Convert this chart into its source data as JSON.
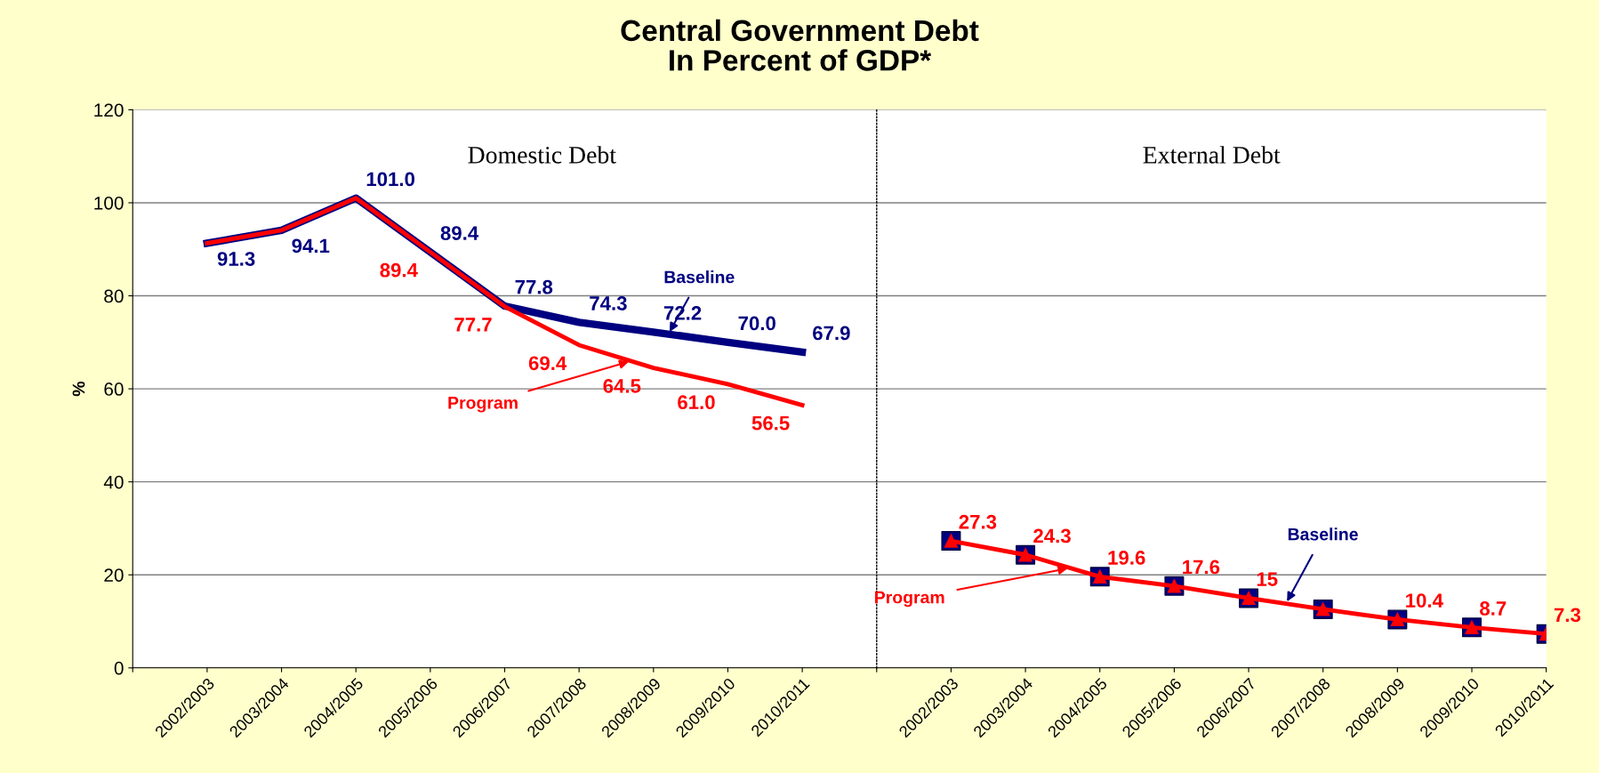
{
  "chart_data": [
    {
      "type": "line",
      "title": "Central Government Debt\nIn Percent of GDP*",
      "ylabel": "%",
      "categories": [
        null,
        "2002/2003",
        "2003/2004",
        "2004/2005",
        "2005/2006",
        "2006/2007",
        "2007/2008",
        "2008/2009",
        "2009/2010",
        "2010/2011"
      ],
      "series": [
        {
          "name": "Baseline",
          "color": "#000080",
          "values": [
            null,
            91.3,
            94.1,
            101.0,
            89.4,
            77.8,
            74.3,
            72.2,
            70.0,
            67.9
          ],
          "value_labels": [
            null,
            "91.3",
            "94.1",
            "101.0",
            "89.4",
            "77.8",
            "74.3",
            "72.2",
            "70.0",
            "67.9"
          ]
        },
        {
          "name": "Program",
          "color": "#ff0000",
          "values": [
            null,
            91.3,
            94.1,
            101.0,
            89.4,
            77.7,
            69.4,
            64.5,
            61.0,
            56.5
          ],
          "value_labels": [
            null,
            null,
            null,
            null,
            "89.4",
            "77.7",
            "69.4",
            "64.5",
            "61.0",
            "56.5"
          ]
        }
      ],
      "ylim": [
        0,
        120
      ],
      "yticks": [
        0,
        20,
        40,
        60,
        80,
        100,
        120
      ],
      "grid": "y",
      "annotations": [
        "Domestic Debt"
      ]
    },
    {
      "type": "line",
      "categories": [
        null,
        "2002/2003",
        "2003/2004",
        "2004/2005",
        "2005/2006",
        "2006/2007",
        "2007/2008",
        "2008/2009",
        "2009/2010",
        "2010/2011"
      ],
      "series": [
        {
          "name": "Baseline",
          "type": "scatter",
          "color": "#000080",
          "marker": "square",
          "values": [
            null,
            27.3,
            24.3,
            19.6,
            17.6,
            15,
            12.6,
            10.4,
            8.7,
            7.3
          ]
        },
        {
          "name": "Program",
          "color": "#ff0000",
          "marker": "triangle",
          "values": [
            null,
            27.3,
            24.3,
            19.6,
            17.6,
            15,
            12.6,
            10.4,
            8.7,
            7.3
          ],
          "value_labels": [
            null,
            "27.3",
            "24.3",
            "19.6",
            "17.6",
            "15",
            null,
            "10.4",
            "8.7",
            "7.3"
          ]
        }
      ],
      "ylim": [
        0,
        120
      ],
      "yticks": [
        0,
        20,
        40,
        60,
        80,
        100,
        120
      ],
      "grid": "y",
      "tick_labels": "x",
      "annotations": [
        "External Debt"
      ]
    }
  ]
}
